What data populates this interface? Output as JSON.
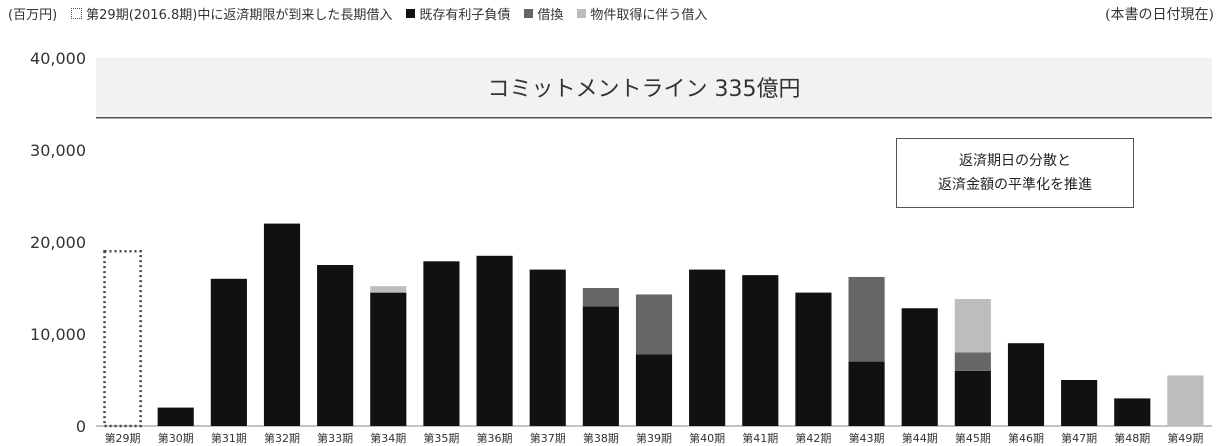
{
  "header": {
    "unit_label": "(百万円)",
    "date_note": "(本書の日付現在)"
  },
  "legend": {
    "items": [
      {
        "key": "maturity",
        "label": "第29期(2016.8期)中に返済期限が到来した長期借入",
        "style": "dotted"
      },
      {
        "key": "existing",
        "label": "既存有利子負債",
        "color": "#111111"
      },
      {
        "key": "refinance",
        "label": "借換",
        "color": "#666666"
      },
      {
        "key": "acquisition",
        "label": "物件取得に伴う借入",
        "color": "#bdbdbd"
      }
    ]
  },
  "commitment_label": "コミットメントライン 335億円",
  "callout": {
    "line1": "返済期日の分散と",
    "line2": "返済金額の平準化を推進"
  },
  "chart_data": {
    "type": "bar",
    "stacked": true,
    "categories": [
      "第29期",
      "第30期",
      "第31期",
      "第32期",
      "第33期",
      "第34期",
      "第35期",
      "第36期",
      "第37期",
      "第38期",
      "第39期",
      "第40期",
      "第41期",
      "第42期",
      "第43期",
      "第44期",
      "第45期",
      "第46期",
      "第47期",
      "第48期",
      "第49期"
    ],
    "series": [
      {
        "name": "第29期(2016.8期)中に返済期限が到来した長期借入",
        "style": "dotted",
        "values": [
          19000,
          0,
          0,
          0,
          0,
          0,
          0,
          0,
          0,
          0,
          0,
          0,
          0,
          0,
          0,
          0,
          0,
          0,
          0,
          0,
          0
        ]
      },
      {
        "name": "既存有利子負債",
        "color": "#111111",
        "values": [
          0,
          2000,
          16000,
          22000,
          17500,
          14500,
          17900,
          18500,
          17000,
          13000,
          7800,
          17000,
          16400,
          14500,
          7000,
          12800,
          6000,
          9000,
          5000,
          3000,
          0
        ]
      },
      {
        "name": "借換",
        "color": "#666666",
        "values": [
          0,
          0,
          0,
          0,
          0,
          0,
          0,
          0,
          0,
          2000,
          6500,
          0,
          0,
          0,
          9200,
          0,
          2000,
          0,
          0,
          0,
          0
        ]
      },
      {
        "name": "物件取得に伴う借入",
        "color": "#bdbdbd",
        "values": [
          0,
          0,
          0,
          0,
          0,
          700,
          0,
          0,
          0,
          0,
          0,
          0,
          0,
          0,
          0,
          0,
          5800,
          0,
          0,
          0,
          5500
        ]
      }
    ],
    "yticks": [
      0,
      10000,
      20000,
      30000,
      40000
    ],
    "ytick_labels": [
      "0",
      "10,000",
      "20,000",
      "30,000",
      "40,000"
    ],
    "ylim": [
      0,
      40000
    ],
    "reference_line": {
      "value": 33500,
      "label": "コミットメントライン 335億円"
    },
    "ylabel": "(百万円)",
    "grid": false
  }
}
